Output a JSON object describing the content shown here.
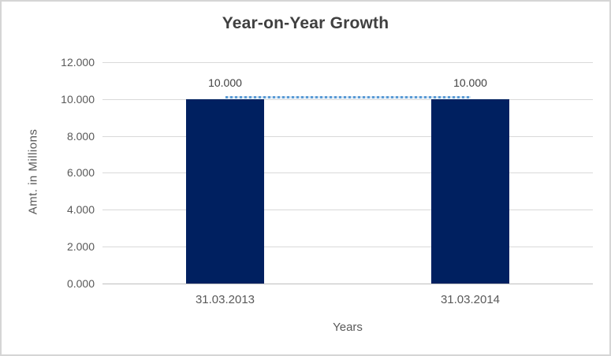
{
  "chart_data": {
    "type": "bar",
    "title": "Year-on-Year Growth",
    "xlabel": "Years",
    "ylabel": "Amt. in Millions",
    "categories": [
      "31.03.2013",
      "31.03.2014"
    ],
    "values": [
      10.0,
      10.0
    ],
    "data_labels": [
      "10.000",
      "10.000"
    ],
    "ylim": [
      0,
      12
    ],
    "ytick_step": 2,
    "ytick_labels": [
      "0.000",
      "2.000",
      "4.000",
      "6.000",
      "8.000",
      "10.000",
      "12.000"
    ],
    "grid": true,
    "legend": "none",
    "trendline": {
      "style": "dotted",
      "connects": "bar-tops",
      "y": 10.0
    },
    "colors": {
      "bar": "#002060",
      "trendline": "#5B9BD5",
      "title_text": "#404040",
      "axis_text": "#595959",
      "data_label_text": "#404040",
      "gridline": "#D9D9D9",
      "axis_line": "#BFBFBF",
      "frame_border": "#D5D5D5",
      "background": "#FFFFFF"
    }
  }
}
